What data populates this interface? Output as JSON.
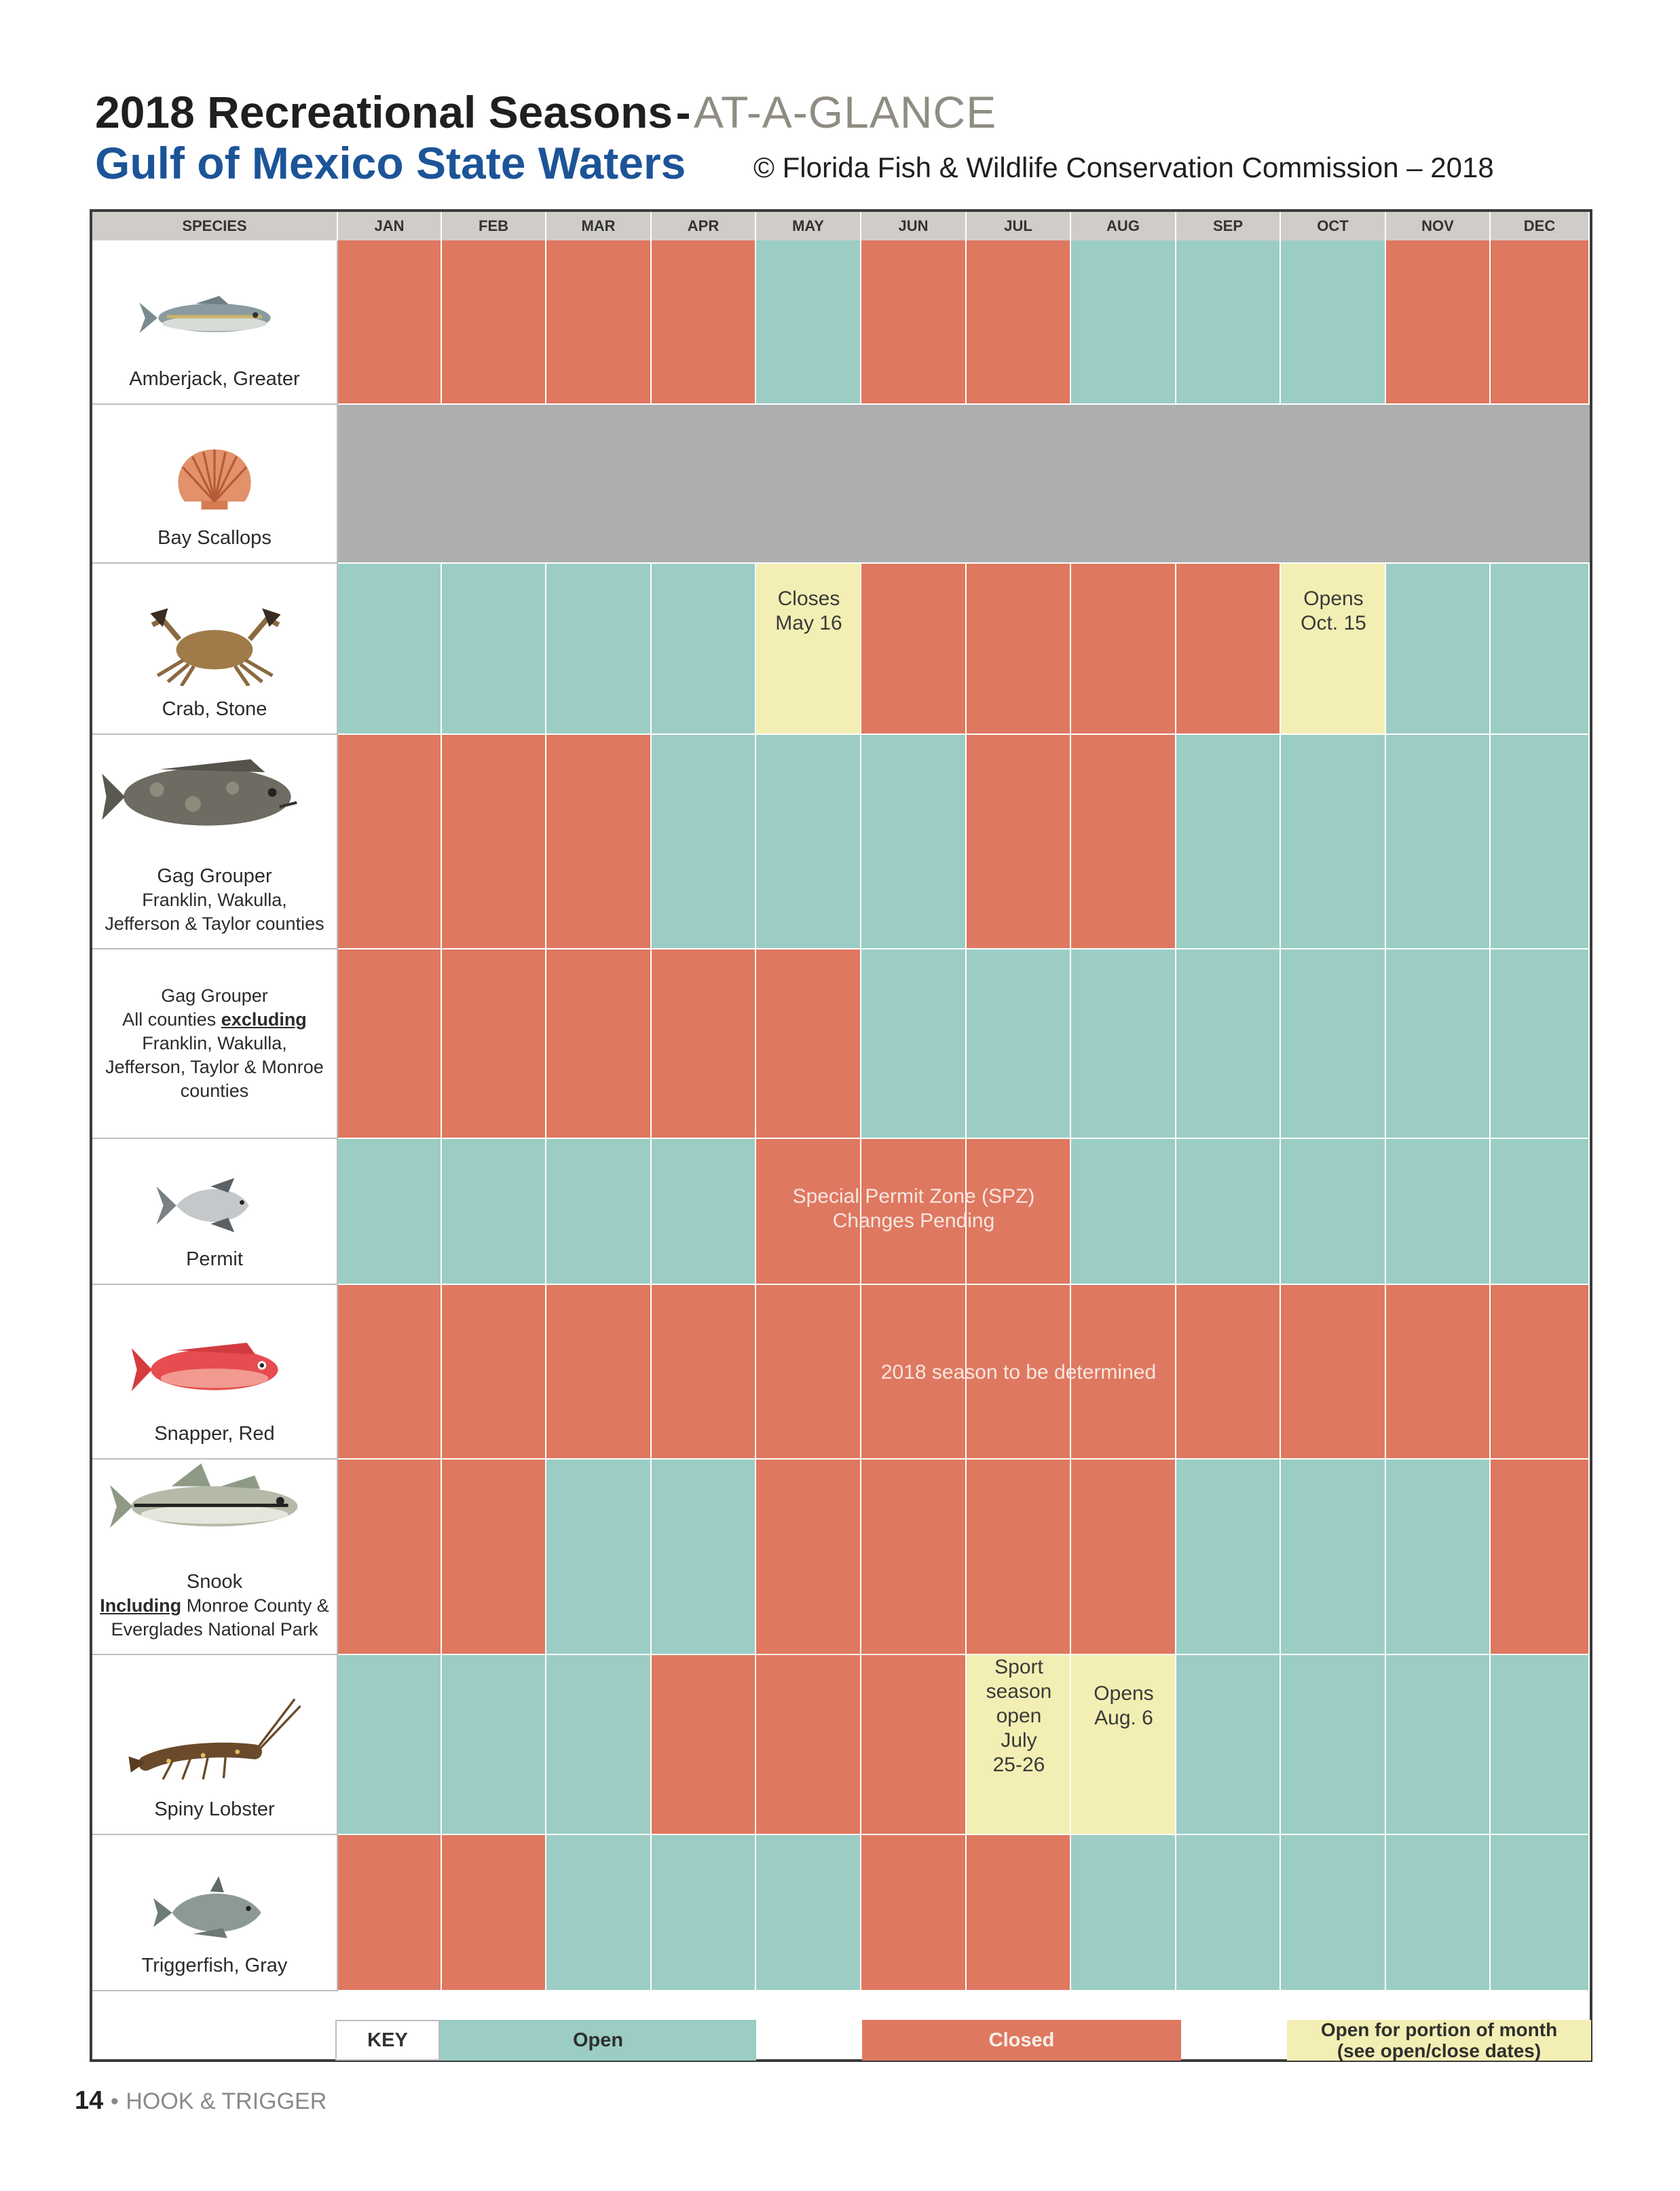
{
  "title": {
    "main": "2018 Recreational Seasons",
    "separator": "-",
    "sub": "AT-A-GLANCE",
    "region": "Gulf of Mexico State Waters",
    "copyright": "© Florida Fish & Wildlife Conservation Commission – 2018"
  },
  "header": {
    "species": "SPECIES",
    "months": [
      "JAN",
      "FEB",
      "MAR",
      "APR",
      "MAY",
      "JUN",
      "JUL",
      "AUG",
      "SEP",
      "OCT",
      "NOV",
      "DEC"
    ]
  },
  "species": [
    {
      "name": "Amberjack, Greater",
      "note": "",
      "icon": "amberjack-icon",
      "months": [
        "C",
        "C",
        "C",
        "C",
        "O",
        "C",
        "C",
        "O",
        "O",
        "O",
        "C",
        "C"
      ]
    },
    {
      "name": "Bay Scallops",
      "note": "",
      "icon": "scallop-icon",
      "months": [
        "G",
        "G",
        "G",
        "G",
        "G",
        "G",
        "G",
        "G",
        "G",
        "G",
        "G",
        "G"
      ]
    },
    {
      "name": "Crab, Stone",
      "note": "",
      "icon": "crab-icon",
      "months": [
        "O",
        "O",
        "O",
        "O",
        "P",
        "C",
        "C",
        "C",
        "C",
        "P",
        "O",
        "O"
      ]
    },
    {
      "name": "Gag Grouper",
      "note": "Franklin, Wakulla, Jefferson & Taylor counties",
      "icon": "gag-grouper-icon",
      "months": [
        "C",
        "C",
        "C",
        "O",
        "O",
        "O",
        "C",
        "C",
        "O",
        "O",
        "O",
        "O"
      ]
    },
    {
      "name": "Gag Grouper",
      "note": "",
      "icon": "",
      "months": [
        "C",
        "C",
        "C",
        "C",
        "C",
        "O",
        "O",
        "O",
        "O",
        "O",
        "O",
        "O"
      ]
    },
    {
      "name": "Permit",
      "note": "",
      "icon": "permit-icon",
      "months": [
        "O",
        "O",
        "O",
        "O",
        "C",
        "C",
        "C",
        "O",
        "O",
        "O",
        "O",
        "O"
      ]
    },
    {
      "name": "Snapper, Red",
      "note": "",
      "icon": "red-snapper-icon",
      "months": [
        "C",
        "C",
        "C",
        "C",
        "C",
        "C",
        "C",
        "C",
        "C",
        "C",
        "C",
        "C"
      ]
    },
    {
      "name": "Snook",
      "note": "",
      "icon": "snook-icon",
      "months": [
        "C",
        "C",
        "O",
        "O",
        "C",
        "C",
        "C",
        "C",
        "O",
        "O",
        "O",
        "C"
      ]
    },
    {
      "name": "Spiny Lobster",
      "note": "",
      "icon": "lobster-icon",
      "months": [
        "O",
        "O",
        "O",
        "C",
        "C",
        "C",
        "P",
        "P",
        "O",
        "O",
        "O",
        "O"
      ]
    },
    {
      "name": "Triggerfish, Gray",
      "note": "",
      "icon": "triggerfish-icon",
      "months": [
        "C",
        "C",
        "O",
        "O",
        "O",
        "C",
        "C",
        "O",
        "O",
        "O",
        "O",
        "O"
      ]
    }
  ],
  "gag_all_counties": {
    "line1": "Gag Grouper",
    "line2a": "All counties",
    "line2b": "excluding",
    "line3": "Franklin, Wakulla,",
    "line4": "Jefferson, Taylor & Monroe",
    "line5": "counties"
  },
  "gag_franklin": {
    "line1": "Franklin, Wakulla,",
    "line2": "Jefferson & Taylor counties"
  },
  "snook_note": {
    "bold": "Including",
    "rest": "Monroe County &",
    "line2": "Everglades National Park"
  },
  "annotations": {
    "crab_may": [
      "Closes",
      "May 16"
    ],
    "crab_oct": [
      "Opens",
      "Oct. 15"
    ],
    "permit_spz": [
      "Special Permit Zone (SPZ)",
      "Changes Pending"
    ],
    "snapper": "2018 season to be determined",
    "lobster_jul": [
      "Sport",
      "season",
      "open",
      "July",
      "25-26"
    ],
    "lobster_aug": [
      "Opens",
      "Aug. 6"
    ]
  },
  "key": {
    "label": "KEY",
    "open": "Open",
    "closed": "Closed",
    "partial_line1": "Open for portion of month",
    "partial_line2": "(see open/close dates)"
  },
  "footer": {
    "page": "14",
    "bullet": "•",
    "magazine": "HOOK & TRIGGER"
  },
  "colors": {
    "open": "#9bcdc4",
    "closed": "#df7860",
    "partial": "#f3efb4",
    "unavailable": "#acaeaf",
    "title_blue": "#1c5498"
  }
}
